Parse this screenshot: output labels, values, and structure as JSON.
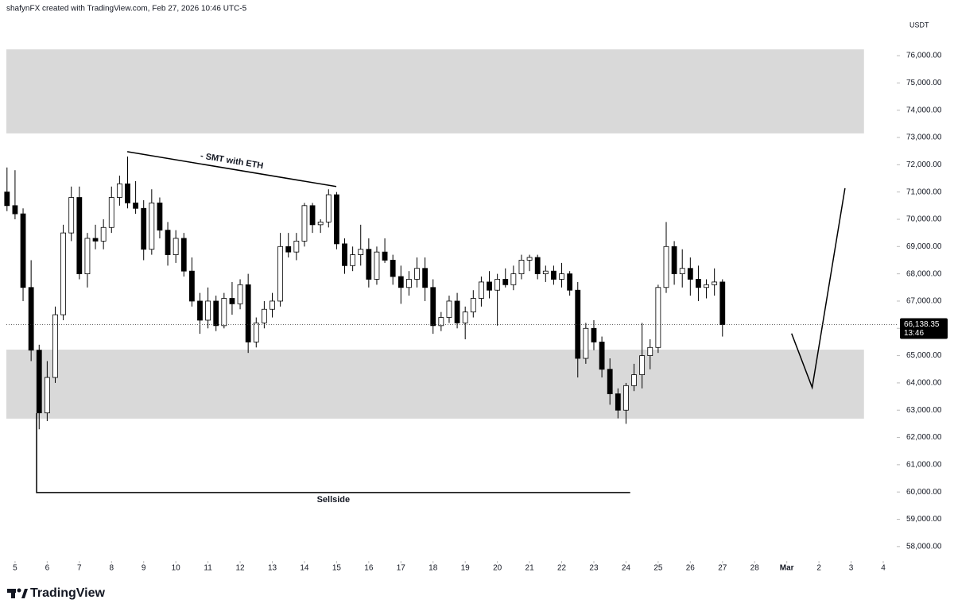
{
  "header": "shafynFX created with TradingView.com, Feb 27, 2026 10:46 UTC-5",
  "logo": "TradingView",
  "chart_data": {
    "type": "candlestick",
    "currency": "USDT",
    "up_color": "#ffffff",
    "down_color": "#000000",
    "x": [
      4.75,
      5,
      5.25,
      5.5,
      5.75,
      6,
      6.25,
      6.5,
      6.75,
      7,
      7.25,
      7.5,
      7.75,
      8,
      8.25,
      8.5,
      8.75,
      9,
      9.25,
      9.5,
      9.75,
      10,
      10.25,
      10.5,
      10.75,
      11,
      11.25,
      11.5,
      11.75,
      12,
      12.25,
      12.5,
      12.75,
      13,
      13.25,
      13.5,
      13.75,
      14,
      14.25,
      14.5,
      14.75,
      15,
      15.25,
      15.5,
      15.75,
      16,
      16.25,
      16.5,
      16.75,
      17,
      17.25,
      17.5,
      17.75,
      18,
      18.25,
      18.5,
      18.75,
      19,
      19.25,
      19.5,
      19.75,
      20,
      20.25,
      20.5,
      20.75,
      21,
      21.25,
      21.5,
      21.75,
      22,
      22.25,
      22.5,
      22.75,
      23,
      23.25,
      23.5,
      23.75,
      24,
      24.25,
      24.5,
      24.75,
      25,
      25.25,
      25.5,
      25.75,
      26,
      26.25,
      26.5,
      26.75,
      27
    ],
    "open": [
      71000,
      70500,
      70200,
      67500,
      65200,
      62900,
      64200,
      66500,
      69500,
      70800,
      68000,
      69300,
      69200,
      69700,
      70800,
      71300,
      70600,
      70400,
      68900,
      70600,
      69600,
      68700,
      69300,
      68100,
      67000,
      66300,
      67000,
      66100,
      67100,
      66900,
      67600,
      65500,
      66200,
      66700,
      67000,
      69000,
      68800,
      69200,
      70500,
      69800,
      69900,
      70900,
      69100,
      68300,
      68700,
      68900,
      67800,
      68800,
      68500,
      67900,
      67500,
      67800,
      68200,
      67500,
      66100,
      66400,
      67000,
      66200,
      66600,
      67100,
      67700,
      67400,
      67800,
      67600,
      68000,
      68500,
      68600,
      68000,
      68100,
      67800,
      68000,
      67400,
      64900,
      66000,
      65500,
      64500,
      63600,
      63000,
      63900,
      64300,
      65000,
      65300,
      67500,
      69000,
      68000,
      68200,
      67800,
      67500,
      67600,
      67700
    ],
    "high": [
      71900,
      71800,
      70400,
      68500,
      65400,
      64800,
      66800,
      69800,
      71200,
      71200,
      69500,
      69800,
      70000,
      71200,
      71600,
      72300,
      71400,
      70700,
      71100,
      70800,
      69900,
      69600,
      69500,
      68600,
      67300,
      67500,
      67200,
      67300,
      67700,
      67800,
      68000,
      66400,
      67000,
      67300,
      69500,
      69500,
      69500,
      70600,
      70600,
      70000,
      71100,
      71000,
      69300,
      69000,
      69800,
      69300,
      69000,
      69300,
      68700,
      68300,
      68100,
      68600,
      68600,
      67800,
      66600,
      67200,
      67300,
      66800,
      67400,
      67900,
      68100,
      68000,
      68200,
      68300,
      68700,
      68700,
      68700,
      68300,
      68300,
      68400,
      68100,
      67700,
      66200,
      66300,
      65700,
      64900,
      63800,
      64000,
      64700,
      66200,
      65600,
      67600,
      69900,
      69200,
      68900,
      68600,
      68300,
      67800,
      68200,
      67800
    ],
    "low": [
      70300,
      70000,
      67000,
      64800,
      62300,
      62600,
      64000,
      66300,
      69200,
      67800,
      67500,
      68900,
      68900,
      69500,
      70500,
      70400,
      70200,
      68500,
      68700,
      69300,
      68300,
      68400,
      67900,
      66800,
      65800,
      66000,
      65900,
      66000,
      66500,
      66700,
      65100,
      65300,
      66000,
      66400,
      66800,
      68600,
      68500,
      69000,
      69500,
      69500,
      69700,
      68900,
      68000,
      68100,
      68300,
      67500,
      67600,
      68400,
      67600,
      66900,
      67200,
      67500,
      67000,
      65800,
      65900,
      66200,
      66000,
      65600,
      66400,
      66800,
      67100,
      66100,
      67500,
      67400,
      67800,
      68100,
      67800,
      67700,
      67600,
      67500,
      67200,
      64200,
      64700,
      65200,
      64200,
      63200,
      62700,
      62500,
      63700,
      63800,
      64500,
      65100,
      67300,
      67600,
      67500,
      67200,
      67000,
      67100,
      67200,
      65700
    ],
    "close": [
      70500,
      70200,
      67500,
      65200,
      62900,
      64200,
      66500,
      69500,
      70800,
      68000,
      69300,
      69200,
      69700,
      70800,
      71300,
      70600,
      70400,
      68900,
      70600,
      69600,
      68700,
      69300,
      68100,
      67000,
      66300,
      67000,
      66100,
      67100,
      66900,
      67600,
      65500,
      66200,
      66700,
      67000,
      69000,
      68800,
      69200,
      70500,
      69800,
      69900,
      70900,
      69100,
      68300,
      68700,
      68900,
      67800,
      68800,
      68500,
      67900,
      67500,
      67800,
      68200,
      67500,
      66100,
      66400,
      67000,
      66200,
      66600,
      67100,
      67700,
      67400,
      67800,
      67600,
      68000,
      68500,
      68600,
      68000,
      68100,
      67800,
      68000,
      67400,
      64900,
      66000,
      65500,
      64500,
      63600,
      63000,
      63900,
      64300,
      65000,
      65300,
      67500,
      69000,
      68000,
      68200,
      67800,
      67500,
      67600,
      67700,
      66138.35
    ],
    "xlim": [
      4.73,
      32.42
    ],
    "ylim": [
      57500,
      77400
    ],
    "xticks": [
      5,
      6,
      7,
      8,
      9,
      10,
      11,
      12,
      13,
      14,
      15,
      16,
      17,
      18,
      19,
      20,
      21,
      22,
      23,
      24,
      25,
      26,
      27,
      28,
      {
        "value": 29,
        "label": "Mar"
      },
      {
        "value": 30,
        "label": "2"
      },
      {
        "value": 31,
        "label": "3"
      },
      {
        "value": 32,
        "label": "4"
      }
    ],
    "yticks": [
      {
        "value": 58000,
        "label": "58,000.00"
      },
      {
        "value": 59000,
        "label": "59,000.00"
      },
      {
        "value": 60000,
        "label": "60,000.00"
      },
      {
        "value": 61000,
        "label": "61,000.00"
      },
      {
        "value": 62000,
        "label": "62,000.00"
      },
      {
        "value": 63000,
        "label": "63,000.00"
      },
      {
        "value": 64000,
        "label": "64,000.00"
      },
      {
        "value": 65000,
        "label": "65,000.00"
      },
      {
        "value": 66000,
        "label": "66,000.00"
      },
      {
        "value": 67000,
        "label": "67,000.00"
      },
      {
        "value": 68000,
        "label": "68,000.00"
      },
      {
        "value": 69000,
        "label": "69,000.00"
      },
      {
        "value": 70000,
        "label": "70,000.00"
      },
      {
        "value": 71000,
        "label": "71,000.00"
      },
      {
        "value": 72000,
        "label": "72,000.00"
      },
      {
        "value": 73000,
        "label": "73,000.00"
      },
      {
        "value": 74000,
        "label": "74,000.00"
      },
      {
        "value": 75000,
        "label": "75,000.00"
      },
      {
        "value": 76000,
        "label": "76,000.00"
      }
    ],
    "last_price": {
      "value": 66138.35,
      "label": "66,138.35"
    },
    "countdown": "13:46",
    "zones": [
      {
        "x_end": 31.4,
        "y": [
          73150,
          76230
        ],
        "color": "#d9d9d9"
      },
      {
        "x_end": 31.4,
        "y": [
          62690,
          65220
        ],
        "color": "#d9d9d9"
      }
    ],
    "lines": [
      {
        "label": "- SMT with ETH",
        "x": [
          8.49,
          14.99
        ],
        "y": [
          72480,
          71200
        ]
      },
      {
        "label": "Sellside",
        "x": [
          5.67,
          5.67,
          24.13
        ],
        "y": [
          62890,
          59980,
          59980
        ]
      },
      {
        "x": [
          29.15,
          29.79,
          30.81
        ],
        "y": [
          65810,
          63830,
          71140
        ]
      }
    ]
  }
}
